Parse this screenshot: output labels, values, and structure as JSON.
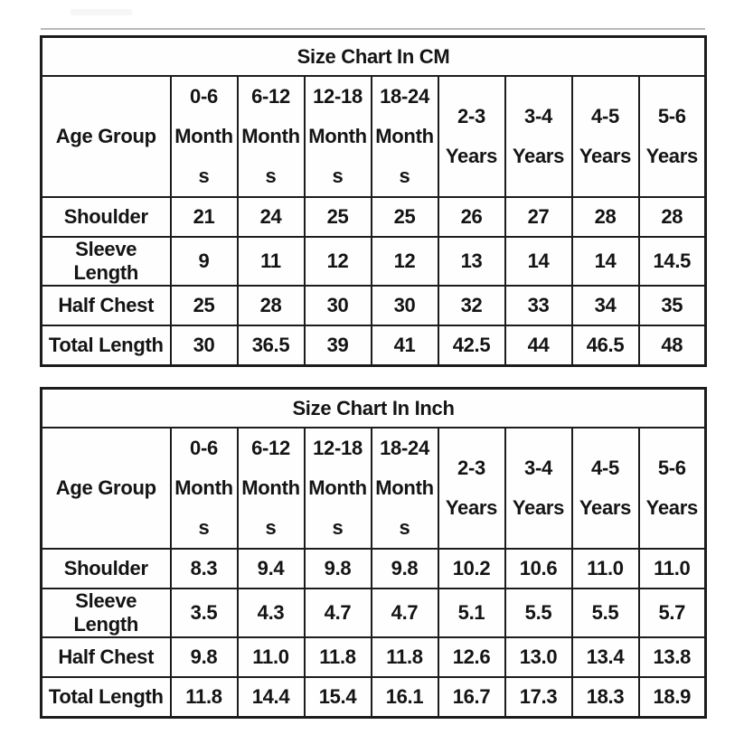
{
  "colors": {
    "border": "#1c1c1c",
    "text": "#141414",
    "background": "#ffffff"
  },
  "chart_data": [
    {
      "type": "table",
      "title": "Size Chart In CM",
      "corner_label": "Age Group",
      "columns": [
        {
          "label": "0-6 Months",
          "lines": [
            "0-6",
            "Month",
            "s"
          ]
        },
        {
          "label": "6-12 Months",
          "lines": [
            "6-12",
            "Month",
            "s"
          ]
        },
        {
          "label": "12-18 Months",
          "lines": [
            "12-18",
            "Month",
            "s"
          ]
        },
        {
          "label": "18-24 Months",
          "lines": [
            "18-24",
            "Month",
            "s"
          ]
        },
        {
          "label": "2-3 Years",
          "lines": [
            "2-3",
            "Years"
          ]
        },
        {
          "label": "3-4 Years",
          "lines": [
            "3-4",
            "Years"
          ]
        },
        {
          "label": "4-5 Years",
          "lines": [
            "4-5",
            "Years"
          ]
        },
        {
          "label": "5-6 Years",
          "lines": [
            "5-6",
            "Years"
          ]
        }
      ],
      "rows": [
        {
          "label": "Shoulder",
          "values": [
            "21",
            "24",
            "25",
            "25",
            "26",
            "27",
            "28",
            "28"
          ]
        },
        {
          "label": "Sleeve Length",
          "values": [
            "9",
            "11",
            "12",
            "12",
            "13",
            "14",
            "14",
            "14.5"
          ]
        },
        {
          "label": "Half Chest",
          "values": [
            "25",
            "28",
            "30",
            "30",
            "32",
            "33",
            "34",
            "35"
          ]
        },
        {
          "label": "Total Length",
          "values": [
            "30",
            "36.5",
            "39",
            "41",
            "42.5",
            "44",
            "46.5",
            "48"
          ]
        }
      ]
    },
    {
      "type": "table",
      "title": "Size Chart In Inch",
      "corner_label": "Age Group",
      "columns": [
        {
          "label": "0-6 Months",
          "lines": [
            "0-6",
            "Month",
            "s"
          ]
        },
        {
          "label": "6-12 Months",
          "lines": [
            "6-12",
            "Month",
            "s"
          ]
        },
        {
          "label": "12-18 Months",
          "lines": [
            "12-18",
            "Month",
            "s"
          ]
        },
        {
          "label": "18-24 Months",
          "lines": [
            "18-24",
            "Month",
            "s"
          ]
        },
        {
          "label": "2-3 Years",
          "lines": [
            "2-3",
            "Years"
          ]
        },
        {
          "label": "3-4 Years",
          "lines": [
            "3-4",
            "Years"
          ]
        },
        {
          "label": "4-5 Years",
          "lines": [
            "4-5",
            "Years"
          ]
        },
        {
          "label": "5-6 Years",
          "lines": [
            "5-6",
            "Years"
          ]
        }
      ],
      "rows": [
        {
          "label": "Shoulder",
          "values": [
            "8.3",
            "9.4",
            "9.8",
            "9.8",
            "10.2",
            "10.6",
            "11.0",
            "11.0"
          ]
        },
        {
          "label": "Sleeve Length",
          "values": [
            "3.5",
            "4.3",
            "4.7",
            "4.7",
            "5.1",
            "5.5",
            "5.5",
            "5.7"
          ]
        },
        {
          "label": "Half Chest",
          "values": [
            "9.8",
            "11.0",
            "11.8",
            "11.8",
            "12.6",
            "13.0",
            "13.4",
            "13.8"
          ]
        },
        {
          "label": "Total Length",
          "values": [
            "11.8",
            "14.4",
            "15.4",
            "16.1",
            "16.7",
            "17.3",
            "18.3",
            "18.9"
          ]
        }
      ]
    }
  ]
}
